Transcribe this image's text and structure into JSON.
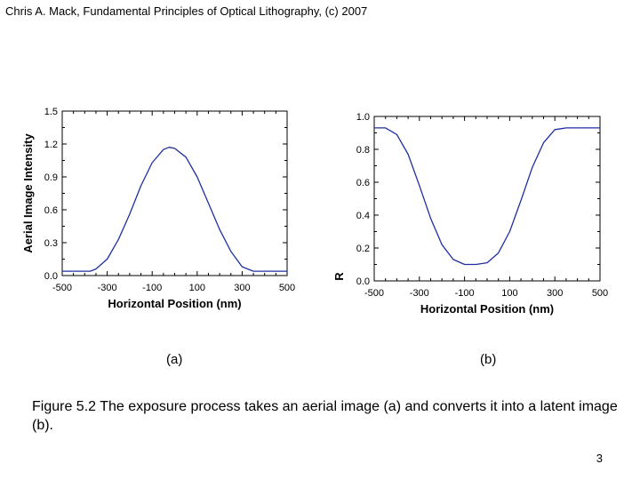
{
  "header": "Chris A. Mack, Fundamental Principles of Optical Lithography, (c) 2007",
  "panel_labels": {
    "a": "(a)",
    "b": "(b)"
  },
  "caption": "Figure 5.2  The exposure process takes an aerial image (a) and converts it into a latent image (b).",
  "page_number": "3",
  "colors": {
    "curve": "#1f2fa0",
    "axis": "#000000"
  },
  "chart_data": [
    {
      "type": "line",
      "xlabel": "Horizontal Position (nm)",
      "ylabel": "Aerial Image Intensity",
      "xlim": [
        -500,
        500
      ],
      "ylim": [
        0,
        1.5
      ],
      "xticks": [
        -500,
        -300,
        -100,
        100,
        300,
        500
      ],
      "xtick_labels": [
        "-500",
        "-300",
        "-100",
        "100",
        "300",
        "500"
      ],
      "yticks": [
        0,
        0.3,
        0.6,
        0.9,
        1.2,
        1.5
      ],
      "ytick_labels": [
        "0.0",
        "0.3",
        "0.6",
        "0.9",
        "1.2",
        "1.5"
      ],
      "series": [
        {
          "x": [
            -500,
            -375,
            -350,
            -300,
            -250,
            -200,
            -150,
            -100,
            -50,
            -25,
            0,
            50,
            100,
            150,
            200,
            250,
            300,
            350,
            375,
            500
          ],
          "y": [
            0.04,
            0.04,
            0.06,
            0.15,
            0.33,
            0.56,
            0.82,
            1.03,
            1.15,
            1.17,
            1.16,
            1.08,
            0.9,
            0.66,
            0.42,
            0.22,
            0.08,
            0.04,
            0.04,
            0.04
          ]
        }
      ]
    },
    {
      "type": "line",
      "xlabel": "Horizontal Position (nm)",
      "ylabel": "R",
      "xlim": [
        -500,
        500
      ],
      "ylim": [
        0,
        1.0
      ],
      "xticks": [
        -500,
        -300,
        -100,
        100,
        300,
        500
      ],
      "xtick_labels": [
        "-500",
        "-300",
        "-100",
        "100",
        "300",
        "500"
      ],
      "yticks": [
        0,
        0.2,
        0.4,
        0.6,
        0.8,
        1.0
      ],
      "ytick_labels": [
        "0.0",
        "0.2",
        "0.4",
        "0.6",
        "0.8",
        "1.0"
      ],
      "series": [
        {
          "x": [
            -500,
            -450,
            -400,
            -350,
            -300,
            -250,
            -200,
            -150,
            -100,
            -50,
            0,
            50,
            100,
            150,
            200,
            250,
            300,
            350,
            400,
            450,
            500
          ],
          "y": [
            0.93,
            0.93,
            0.89,
            0.77,
            0.58,
            0.38,
            0.22,
            0.13,
            0.1,
            0.1,
            0.11,
            0.17,
            0.3,
            0.49,
            0.69,
            0.84,
            0.92,
            0.93,
            0.93,
            0.93,
            0.93
          ]
        }
      ]
    }
  ]
}
